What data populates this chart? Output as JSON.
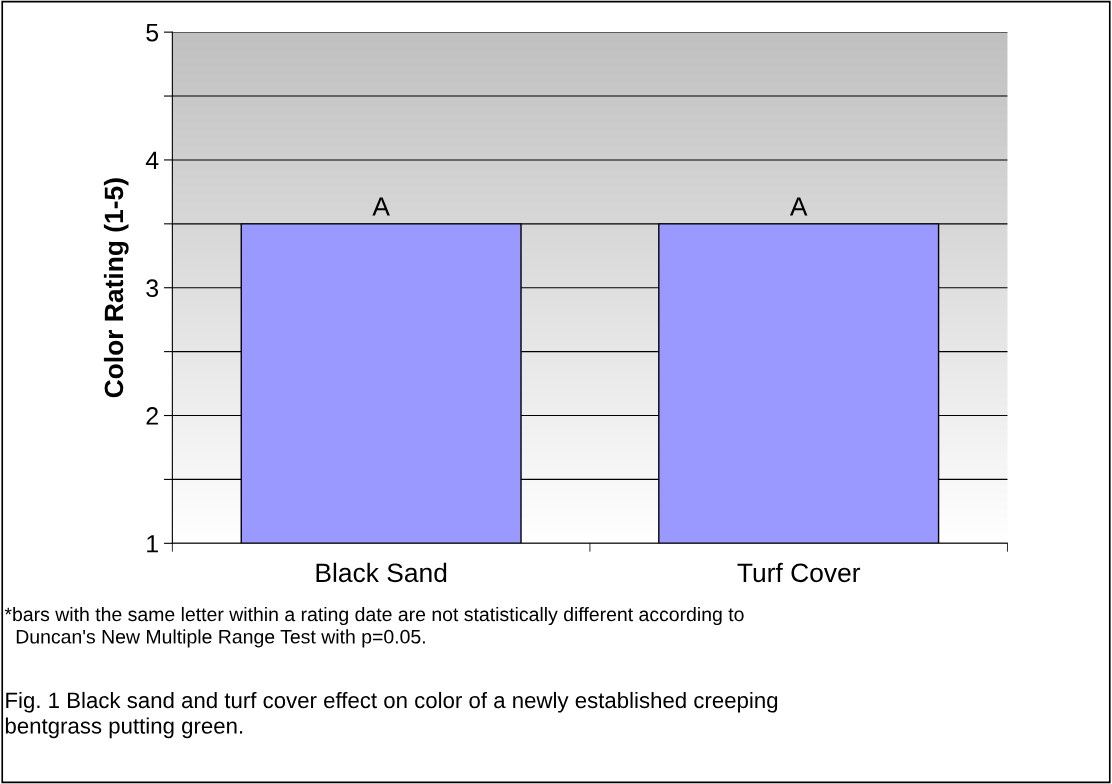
{
  "chart_data": {
    "type": "bar",
    "ylabel": "Color Rating (1-5)",
    "categories": [
      "Black Sand",
      "Turf Cover"
    ],
    "values": [
      3.5,
      3.5
    ],
    "color": "#9999ff",
    "ylim": [
      1,
      5
    ],
    "yticks": [
      1,
      {
        "value": 1.5,
        "label": null
      },
      2,
      {
        "value": 2.5,
        "label": null
      },
      3,
      {
        "value": 3.5,
        "label": null
      },
      4,
      {
        "value": 4.5,
        "label": null
      },
      5
    ],
    "grid": "y",
    "annotations": [
      {
        "text": "A",
        "x": "Black Sand",
        "y": 3.5
      },
      {
        "text": "A",
        "x": "Turf Cover",
        "y": 3.5
      },
      "*bars with the same letter within a rating date are not statistically different according to\n  Duncan's New Multiple Range Test with p=0.05.",
      "Fig. 1 Black sand and turf cover effect on color of a newly established creeping\nbentgrass putting green."
    ]
  }
}
